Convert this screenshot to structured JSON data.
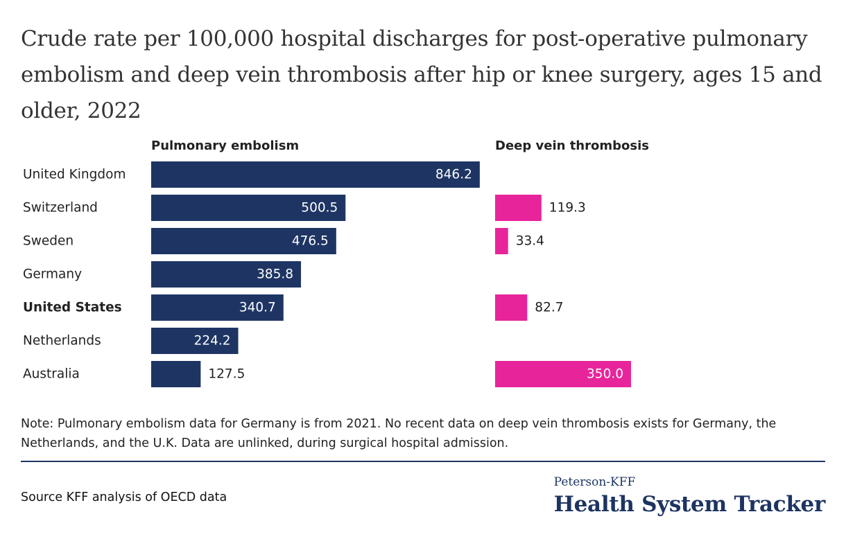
{
  "title": "Crude rate per 100,000 hospital discharges for post-operative pulmonary embolism and deep vein thrombosis after hip or knee surgery, ages 15 and older, 2022",
  "note": "Note: Pulmonary embolism data for Germany is from 2021. No recent data on deep vein thrombosis exists for Germany, the Netherlands, and the U.K. Data are unlinked, during surgical hospital admission.",
  "source": "Source KFF analysis of OECD data",
  "logo": {
    "top": "Peterson-KFF",
    "main": "Health System Tracker"
  },
  "colors": {
    "pe_bar": "#1e3564",
    "dvt_bar": "#e8249b",
    "divider": "#1d3461"
  },
  "chart_data": {
    "type": "bar",
    "orientation": "horizontal",
    "categories": [
      "United Kingdom",
      "Switzerland",
      "Sweden",
      "Germany",
      "United States",
      "Netherlands",
      "Australia"
    ],
    "highlight_category": "United States",
    "series": [
      {
        "name": "Pulmonary embolism",
        "values": [
          846.2,
          500.5,
          476.5,
          385.8,
          340.7,
          224.2,
          127.5
        ],
        "labels": [
          "846.2",
          "500.5",
          "476.5",
          "385.8",
          "340.7",
          "224.2",
          "127.5"
        ],
        "color": "#1e3564"
      },
      {
        "name": "Deep vein thrombosis",
        "values": [
          null,
          119.3,
          33.4,
          null,
          82.7,
          null,
          350.0
        ],
        "labels": [
          "",
          "119.3",
          "33.4",
          "",
          "82.7",
          "",
          "350.0"
        ],
        "color": "#e8249b"
      }
    ],
    "legend": "panel headers above each series",
    "grid": false
  }
}
